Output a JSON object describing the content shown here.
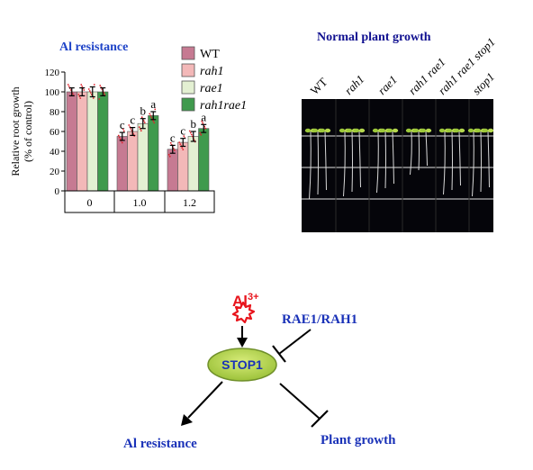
{
  "chart_title": "Al resistance",
  "photo_title": "Normal plant growth",
  "chart_data": {
    "type": "bar",
    "ylabel_line1": "Relative root growth",
    "ylabel_line2": "(% of control)",
    "ylim": [
      0,
      120
    ],
    "yticks": [
      0,
      20,
      40,
      60,
      80,
      100,
      120
    ],
    "categories": [
      "0",
      "1.0",
      "1.2"
    ],
    "legend_placement": "top-right",
    "series": [
      {
        "name": "WT",
        "color": "#c67a92",
        "values": [
          100,
          55,
          42
        ],
        "errors": [
          4,
          4,
          4
        ],
        "labels": [
          "",
          "c",
          "c"
        ]
      },
      {
        "name": "rah1",
        "color": "#f3b8b8",
        "values": [
          100,
          60,
          49
        ],
        "errors": [
          4,
          4,
          4
        ],
        "labels": [
          "",
          "c",
          "c"
        ]
      },
      {
        "name": "rae1",
        "color": "#e3f0d2",
        "values": [
          100,
          68,
          55
        ],
        "errors": [
          5,
          5,
          5
        ],
        "labels": [
          "",
          "b",
          "b"
        ]
      },
      {
        "name": "rah1rae1",
        "color": "#3f9a4d",
        "values": [
          100,
          76,
          63
        ],
        "errors": [
          4,
          4,
          4
        ],
        "labels": [
          "",
          "a",
          "a"
        ]
      }
    ]
  },
  "photo": {
    "genotypes": [
      "WT",
      "rah1",
      "rae1",
      "rah1 rae1",
      "rah1 rae1 stop1",
      "stop1"
    ]
  },
  "diagram": {
    "ion": "Al",
    "ion_charge": "3+",
    "hub": "STOP1",
    "regulator": "RAE1/RAH1",
    "output_left": "Al resistance",
    "output_right": "Plant growth"
  }
}
